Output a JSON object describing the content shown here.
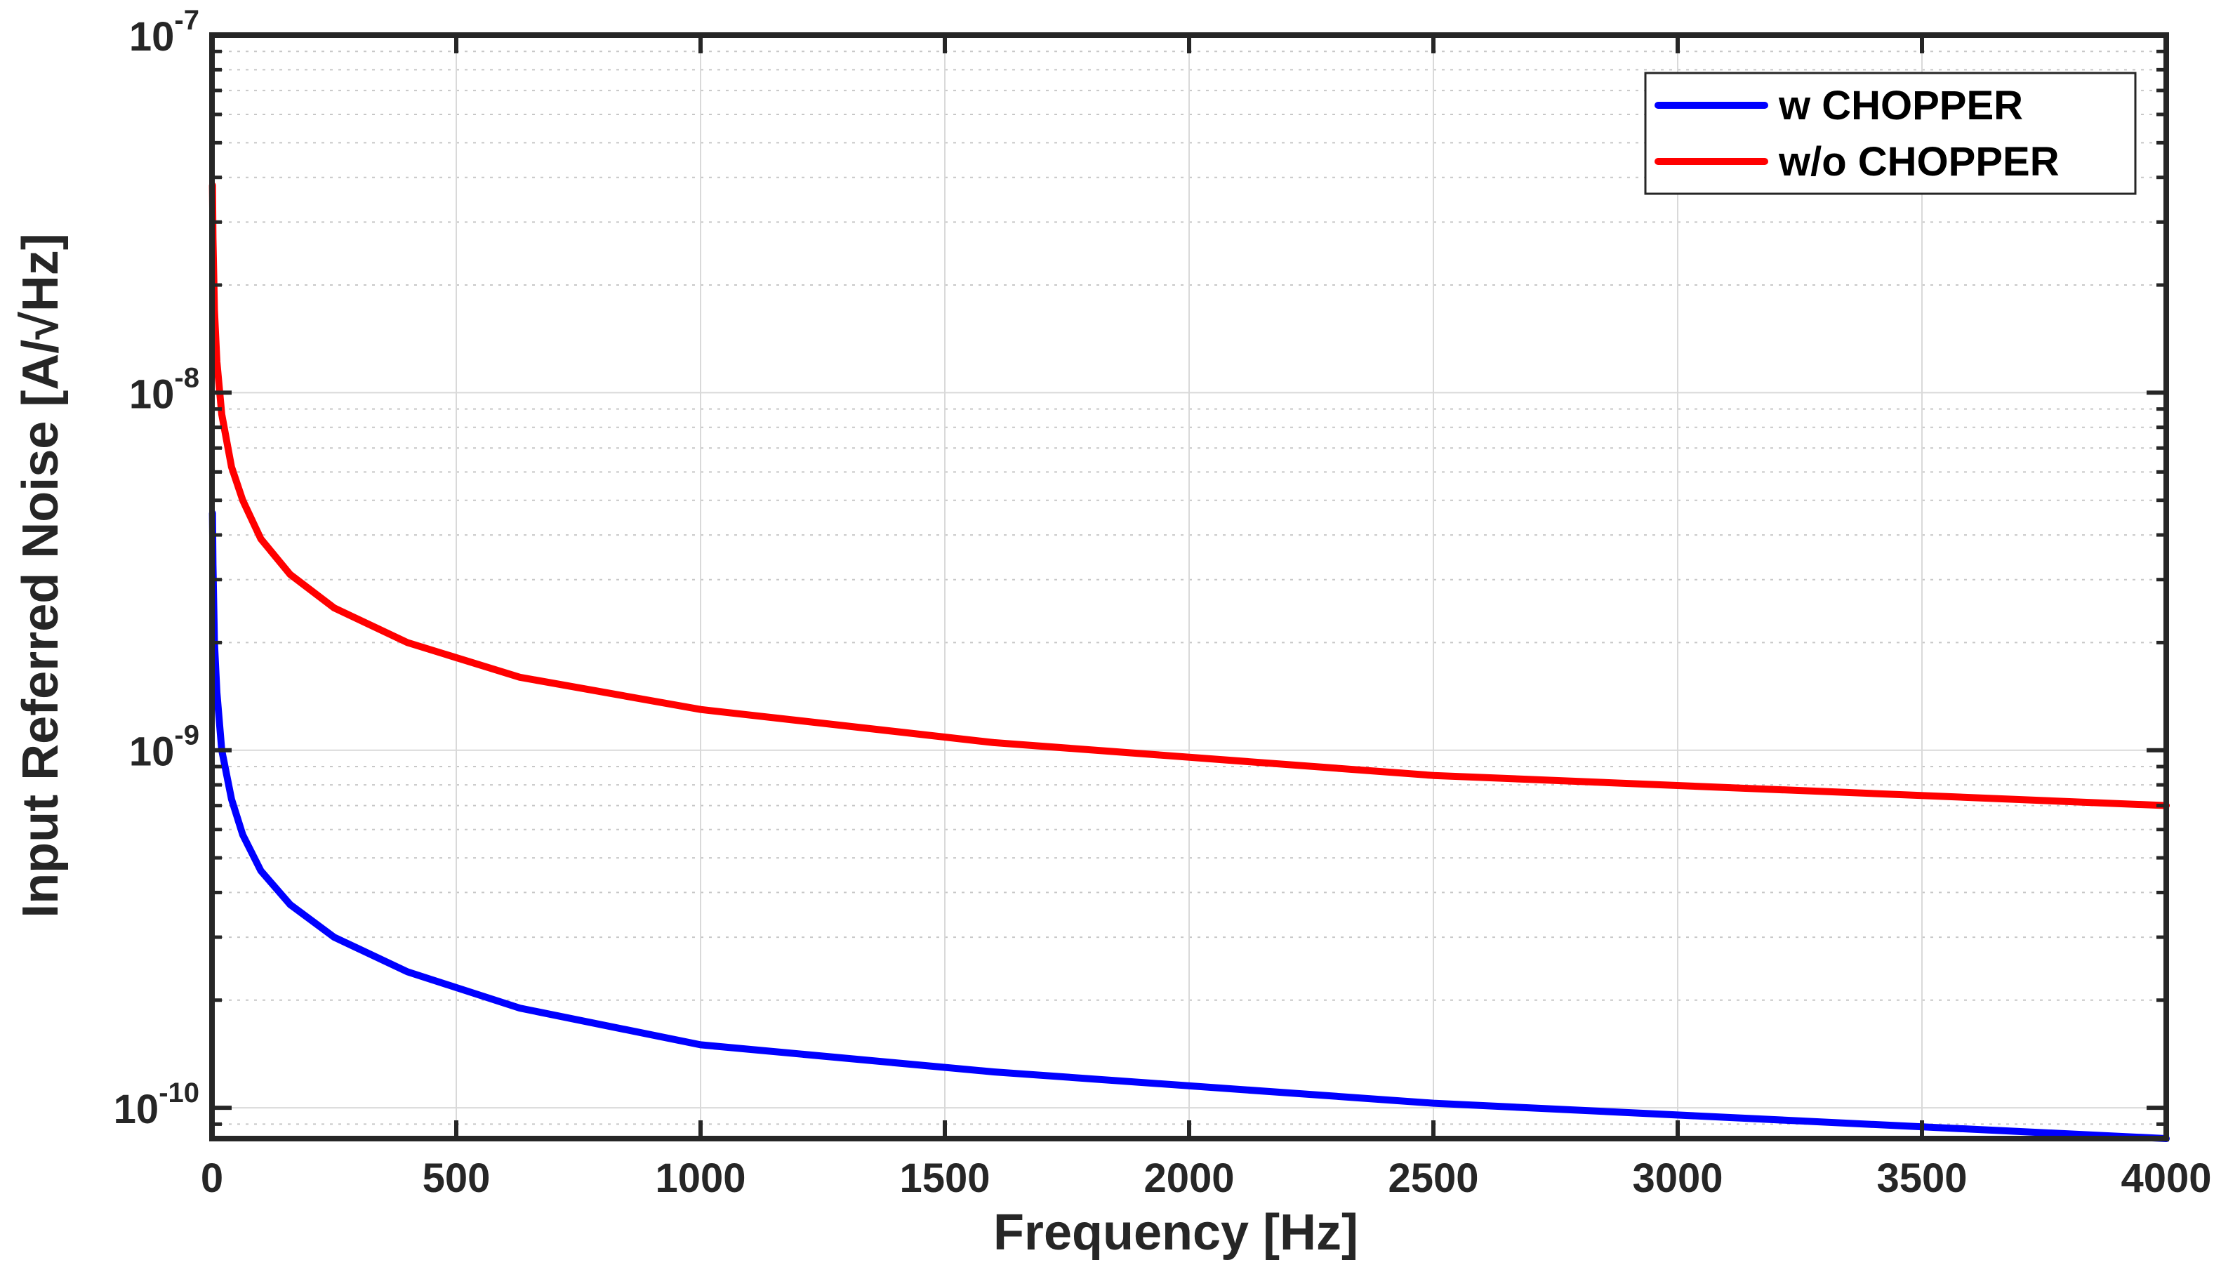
{
  "colors": {
    "w_chopper": "#0000ff",
    "wo_chopper": "#ff0000",
    "axis": "#262626",
    "grid": "#d9d9d9"
  },
  "chart_data": {
    "type": "line",
    "title": "",
    "xlabel": "Frequency [Hz]",
    "ylabel": "Input Referred Noise [A/√Hz]",
    "xlim": [
      0,
      4000
    ],
    "ylim": [
      8.2e-11,
      1e-07
    ],
    "yscale": "log",
    "grid": true,
    "legend_location": "top-right",
    "x_ticks": [
      0,
      500,
      1000,
      1500,
      2000,
      2500,
      3000,
      3500,
      4000
    ],
    "x_tick_labels": [
      "0",
      "500",
      "1000",
      "1500",
      "2000",
      "2500",
      "3000",
      "3500",
      "4000"
    ],
    "y_ticks": [
      {
        "value": 1e-07,
        "base": "10",
        "exp": "-7"
      },
      {
        "value": 1e-08,
        "base": "10",
        "exp": "-8"
      },
      {
        "value": 1e-09,
        "base": "10",
        "exp": "-9"
      },
      {
        "value": 1e-10,
        "base": "10",
        "exp": "-10"
      }
    ],
    "x": [
      1,
      2,
      5,
      10,
      20,
      40,
      63,
      100,
      160,
      250,
      400,
      630,
      1000,
      1600,
      2500,
      4000
    ],
    "series": [
      {
        "name": "w CHOPPER",
        "color": "#0000ff",
        "values": [
          4.6e-09,
          3.3e-09,
          2e-09,
          1.45e-09,
          1e-09,
          7.3e-10,
          5.8e-10,
          4.6e-10,
          3.7e-10,
          3e-10,
          2.4e-10,
          1.9e-10,
          1.5e-10,
          1.26e-10,
          1.03e-10,
          8.2e-11
        ]
      },
      {
        "name": "w/o CHOPPER",
        "color": "#ff0000",
        "values": [
          3.8e-08,
          2.7e-08,
          1.7e-08,
          1.22e-08,
          8.7e-09,
          6.2e-09,
          5e-09,
          3.9e-09,
          3.1e-09,
          2.5e-09,
          2e-09,
          1.6e-09,
          1.3e-09,
          1.05e-09,
          8.5e-10,
          7e-10
        ]
      }
    ]
  }
}
